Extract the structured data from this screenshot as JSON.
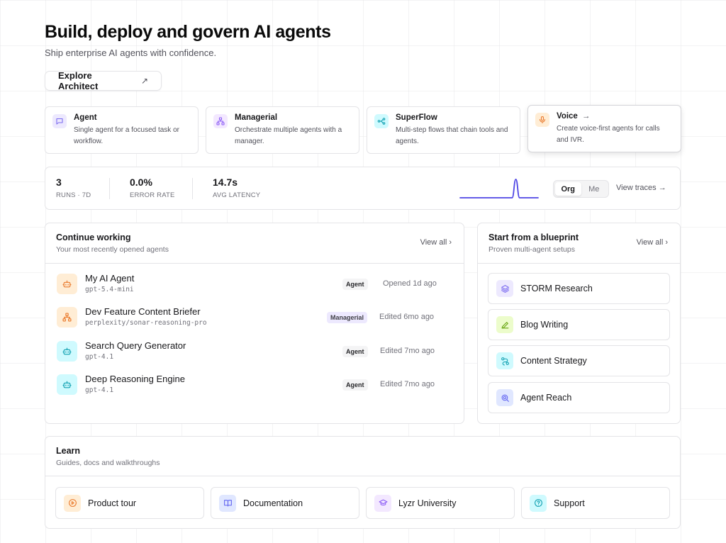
{
  "hero": {
    "title": "Build, deploy and govern AI agents",
    "subtitle": "Ship enterprise AI agents with confidence.",
    "explore_label": "Explore Architect",
    "explore_arrow": "↗"
  },
  "agent_types": [
    {
      "name": "Agent",
      "desc": "Single agent for a focused task or workflow.",
      "icon": "chat-bubble-icon",
      "color": "#7c6cf0",
      "bg": "#ede9fe"
    },
    {
      "name": "Managerial",
      "desc": "Orchestrate multiple agents with a manager.",
      "icon": "hierarchy-icon",
      "color": "#8b5cf6",
      "bg": "#f3e8ff"
    },
    {
      "name": "SuperFlow",
      "desc": "Multi-step flows that chain tools and agents.",
      "icon": "flow-icon",
      "color": "#0e9fb0",
      "bg": "#cffafe"
    },
    {
      "name": "Voice",
      "desc": "Create voice-first agents for calls and IVR.",
      "icon": "microphone-icon",
      "color": "#ea7a2d",
      "bg": "#ffedd5",
      "arrow": "→"
    }
  ],
  "stats": {
    "runs": {
      "value": "3",
      "label": "RUNS · 7D"
    },
    "error_rate": {
      "value": "0.0%",
      "label": "ERROR RATE"
    },
    "latency": {
      "value": "14.7s",
      "label": "AVG LATENCY"
    },
    "sparkline": [
      0,
      0,
      0,
      0,
      0,
      0,
      0,
      0,
      0,
      0,
      0,
      0,
      0,
      0,
      0,
      1,
      0,
      0,
      0,
      0,
      0,
      0
    ],
    "toggle": [
      "Org",
      "Me"
    ],
    "toggle_selected": "Org",
    "view_traces": "View traces →",
    "accent": "#4f46e5"
  },
  "recent": {
    "title": "Continue working",
    "subtitle": "Your most recently opened agents",
    "view_all": "View all ›",
    "rows": [
      {
        "name": "My AI Agent",
        "model": "gpt-5.4-mini",
        "badge": "Agent",
        "time": "Opened 1d ago",
        "icon": "bot-icon",
        "color": "#ea7a2d",
        "bg": "#ffedd5"
      },
      {
        "name": "Dev Feature Content Briefer",
        "model": "perplexity/sonar-reasoning-pro",
        "badge": "Managerial",
        "time": "Edited 6mo ago",
        "icon": "hierarchy-icon",
        "color": "#ea7a2d",
        "bg": "#ffedd5"
      },
      {
        "name": "Search Query Generator",
        "model": "gpt-4.1",
        "badge": "Agent",
        "time": "Edited 7mo ago",
        "icon": "bot-icon",
        "color": "#0e9fb0",
        "bg": "#cffafe"
      },
      {
        "name": "Deep Reasoning Engine",
        "model": "gpt-4.1",
        "badge": "Agent",
        "time": "Edited 7mo ago",
        "icon": "bot-icon",
        "color": "#0e9fb0",
        "bg": "#cffafe"
      }
    ]
  },
  "blueprints": {
    "title": "Start from a blueprint",
    "subtitle": "Proven multi-agent setups",
    "view_all": "View all ›",
    "items": [
      {
        "label": "STORM Research",
        "icon": "layers-icon",
        "color": "#7c6cf0",
        "bg": "#ede9fe"
      },
      {
        "label": "Blog Writing",
        "icon": "pencil-icon",
        "color": "#65a30d",
        "bg": "#ecfccb"
      },
      {
        "label": "Content Strategy",
        "icon": "route-icon",
        "color": "#0e9fb0",
        "bg": "#cffafe"
      },
      {
        "label": "Agent Reach",
        "icon": "magnify-icon",
        "color": "#6366f1",
        "bg": "#e0e7ff"
      }
    ]
  },
  "learn": {
    "title": "Learn",
    "subtitle": "Guides, docs and walkthroughs",
    "items": [
      {
        "label": "Product tour",
        "icon": "play-icon",
        "color": "#ea7a2d",
        "bg": "#ffedd5"
      },
      {
        "label": "Documentation",
        "icon": "book-icon",
        "color": "#6366f1",
        "bg": "#e0e7ff"
      },
      {
        "label": "Lyzr University",
        "icon": "graduation-cap-icon",
        "color": "#8b5cf6",
        "bg": "#f3e8ff"
      },
      {
        "label": "Support",
        "icon": "help-circle-icon",
        "color": "#0e9fb0",
        "bg": "#cffafe"
      }
    ]
  }
}
